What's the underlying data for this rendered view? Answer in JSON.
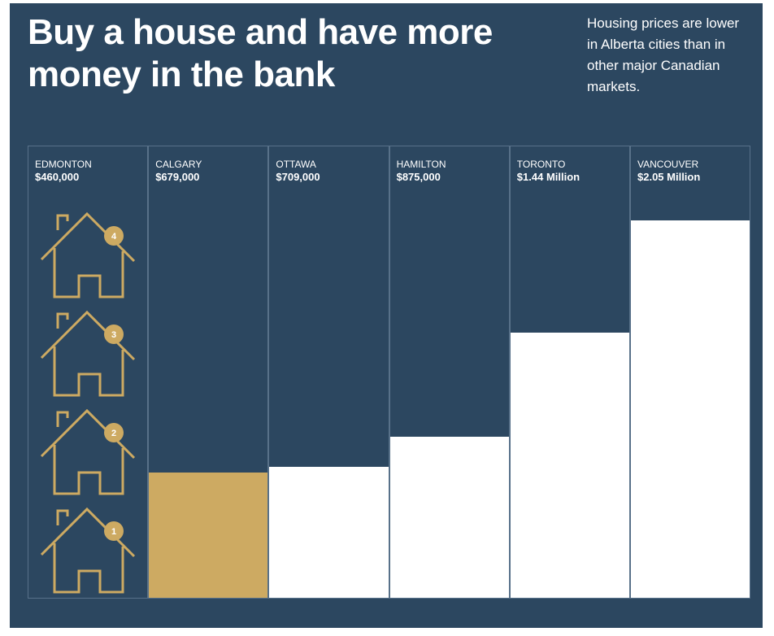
{
  "title": "Buy a house and have more money in the bank",
  "subtitle": "Housing prices are lower in Alberta cities than in other major Canadian markets.",
  "colors": {
    "background": "#2c4760",
    "accent": "#cdaa62",
    "bar": "#ffffff",
    "icon": "#cdaa62"
  },
  "icons": {
    "house": "house-outline-icon",
    "badges": [
      "4",
      "3",
      "2",
      "1"
    ]
  },
  "chart_data": {
    "type": "bar",
    "categories": [
      "EDMONTON",
      "CALGARY",
      "OTTAWA",
      "HAMILTON",
      "TORONTO",
      "VANCOUVER"
    ],
    "values": [
      460000,
      679000,
      709000,
      875000,
      1440000,
      2050000
    ],
    "value_labels": [
      "$460,000",
      "$679,000",
      "$709,000",
      "$875,000",
      "$1.44 Million",
      "$2.05 Million"
    ],
    "highlight": "CALGARY",
    "ylim": [
      0,
      2460000
    ]
  }
}
